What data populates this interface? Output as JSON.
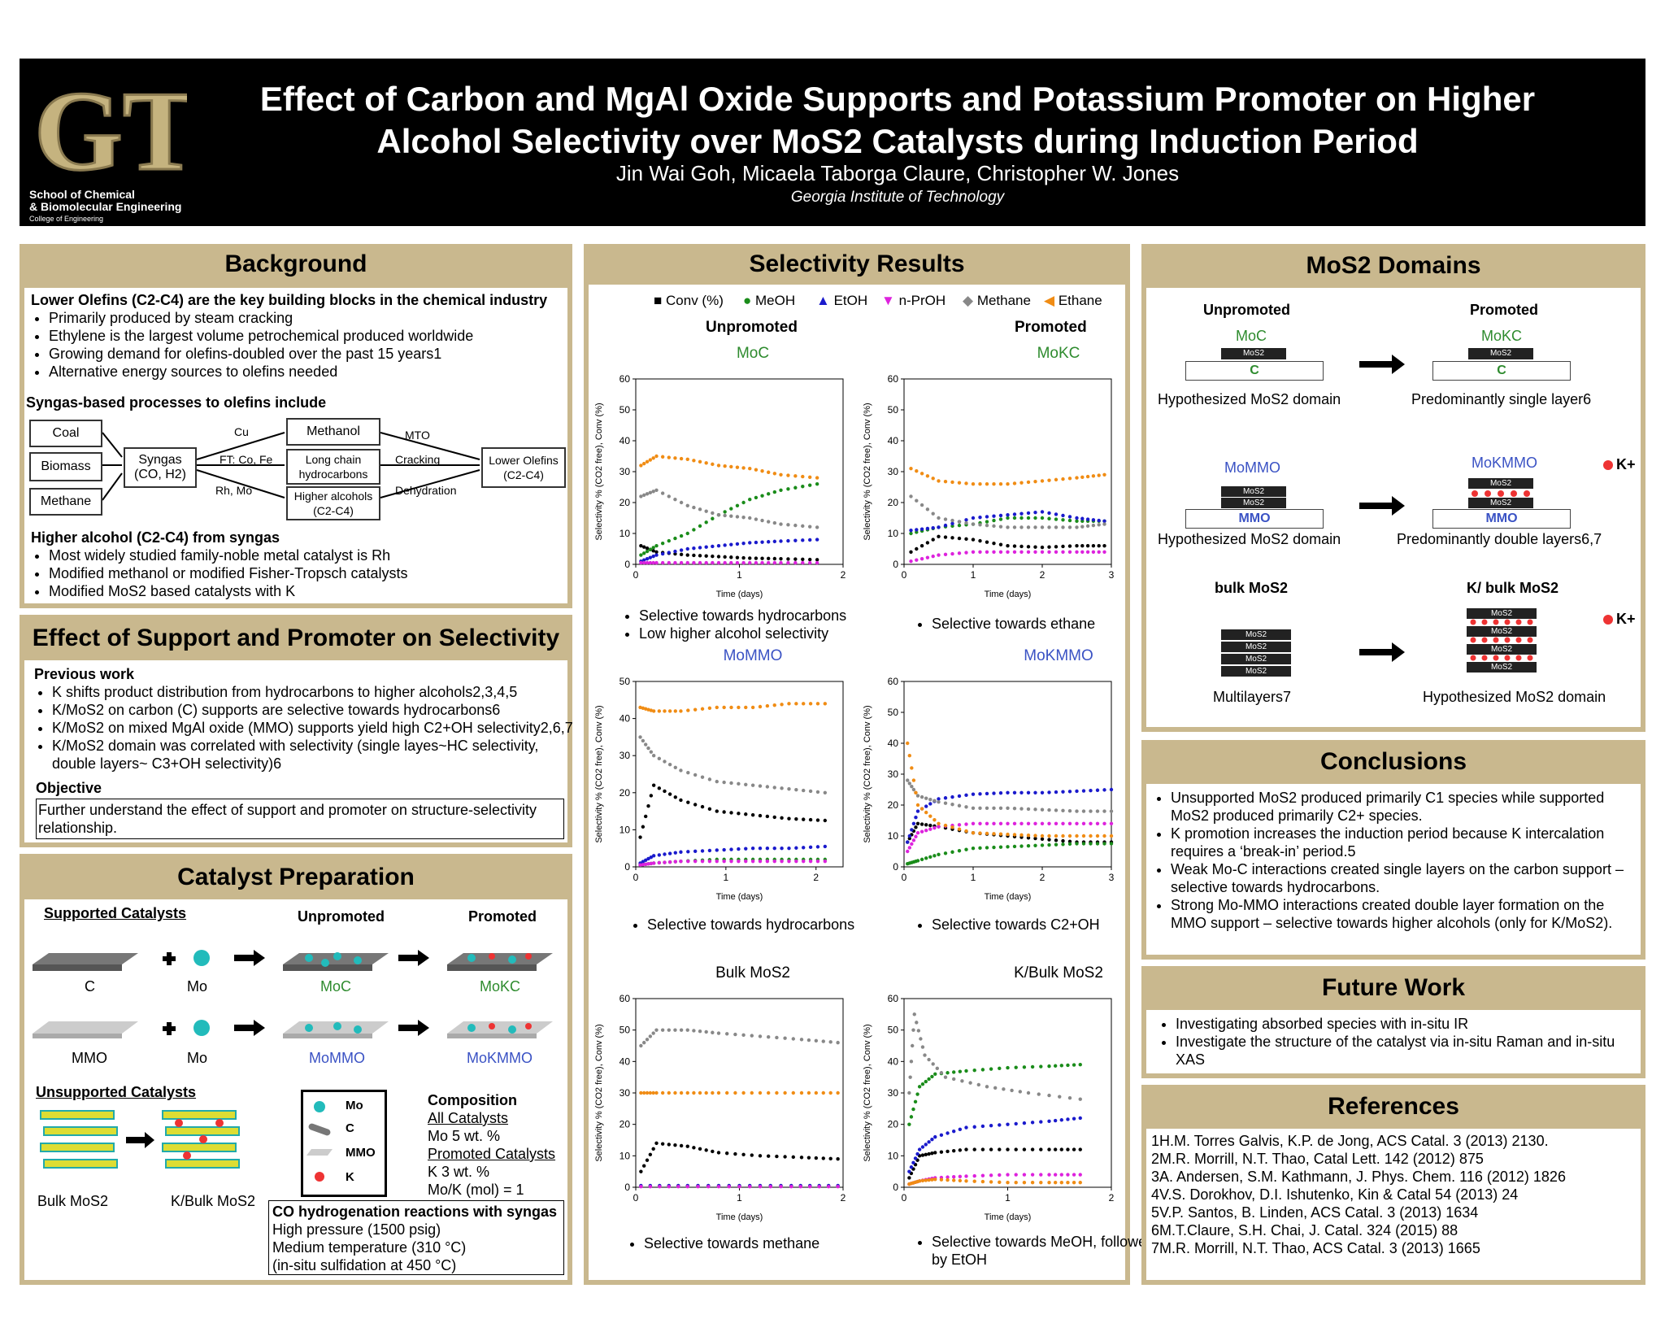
{
  "header": {
    "logo": "GT",
    "school_line1": "School of Chemical",
    "school_line2": "& Biomolecular Engineering",
    "school_line3": "College of Engineering",
    "title_line1": "Effect of Carbon and MgAl Oxide Supports and Potassium Promoter on Higher",
    "title_line2": "Alcohol Selectivity over MoS2 Catalysts during Induction Period",
    "authors": "Jin Wai Goh, Micaela Taborga Claure, Christopher W. Jones",
    "affiliation": "Georgia Institute of Technology"
  },
  "background": {
    "heading": "Background",
    "olefins_heading": "Lower Olefins (C2-C4) are the key building blocks in the chemical industry",
    "olefins_bullets": [
      "Primarily produced by steam cracking",
      "Ethylene is the largest volume petrochemical produced worldwide",
      "Growing demand for olefins-doubled over the past 15 years1",
      "Alternative energy sources to olefins needed"
    ],
    "syngas_heading": "Syngas-based processes to olefins include",
    "diagram": {
      "coal": "Coal",
      "biomass": "Biomass",
      "methane": "Methane",
      "syngas": "Syngas (CO, H2)",
      "cu": "Cu",
      "ft": "FT: Co, Fe",
      "rh": "Rh, Mo",
      "methanol": "Methanol",
      "longchain": "Long chain hydrocarbons",
      "higheralc": "Higher alcohols (C2-C4)",
      "mto": "MTO",
      "cracking": "Cracking",
      "dehydration": "Dehydration",
      "olefins": "Lower Olefins (C2-C4)"
    },
    "higher_heading": "Higher alcohol (C2-C4) from syngas",
    "higher_bullets": [
      "Most widely studied family-noble metal catalyst is Rh",
      "Modified methanol or modified Fisher-Tropsch catalysts",
      "Modified MoS2 based catalysts with K"
    ]
  },
  "effect": {
    "heading": "Effect of Support and Promoter on Selectivity",
    "prev_heading": "Previous work",
    "prev_bullets": [
      "K shifts product distribution from hydrocarbons to higher alcohols2,3,4,5",
      "K/MoS2 on carbon (C) supports are selective towards hydrocarbons6",
      "K/MoS2 on mixed MgAl oxide (MMO) supports yield high C2+OH selectivity2,6,7",
      "K/MoS2 domain was correlated with selectivity (single layes~HC selectivity,",
      "double layers~ C3+OH selectivity)6"
    ],
    "obj_heading": "Objective",
    "objective": "Further understand the effect of support and promoter on structure-selectivity relationship."
  },
  "prep": {
    "heading": "Catalyst Preparation",
    "supported": "Supported Catalysts",
    "unpromoted": "Unpromoted",
    "promoted": "Promoted",
    "c": "C",
    "mo": "Mo",
    "moc": "MoC",
    "mokc": "MoKC",
    "mmo": "MMO",
    "mo2": "Mo",
    "momo": "MoMMO",
    "mokmmo": "MoKMMO",
    "unsupported": "Unsupported Catalysts",
    "bulk": "Bulk MoS2",
    "kbulk": "K/Bulk MoS2",
    "legend": {
      "mo": "Mo",
      "c": "C",
      "mmo": "MMO",
      "k": "K"
    },
    "comp_heading": "Composition",
    "comp_lines": [
      "All Catalysts",
      "Mo 5 wt. %",
      "Promoted Catalysts",
      "K  3 wt. %",
      "Mo/K (mol) = 1"
    ],
    "reaction_heading": "CO hydrogenation reactions with syngas",
    "reaction_lines": [
      "High pressure (1500 psig)",
      "Medium temperature (310 °C)",
      "(in-situ sulfidation at 450 °C)"
    ]
  },
  "selectivity": {
    "heading": "Selectivity Results",
    "legend": [
      "Conv (%)",
      "MeOH",
      "EtOH",
      "n-PrOH",
      "Methane",
      "Ethane"
    ],
    "col_unpromoted": "Unpromoted",
    "col_promoted": "Promoted",
    "ylabel": "Selectivity % (CO2 free), Conv (%)",
    "xlabel": "Time (days)",
    "c1_title": "MoC",
    "c2_title": "MoKC",
    "c3_title": "MoMMO",
    "c4_title": "MoKMMO",
    "c5_title": "Bulk MoS2",
    "c6_title": "K/Bulk MoS2",
    "c1_notes": [
      "Selective towards hydrocarbons",
      "Low higher alcohol selectivity"
    ],
    "c2_notes": [
      "Selective towards ethane"
    ],
    "c3_notes": [
      "Selective towards hydrocarbons"
    ],
    "c4_notes": [
      "Selective towards C2+OH"
    ],
    "c5_notes": [
      "Selective towards methane"
    ],
    "c6_notes": [
      "Selective towards MeOH, followed",
      "by EtOH"
    ]
  },
  "domains": {
    "heading": "MoS2 Domains",
    "unpromoted": "Unpromoted",
    "promoted": "Promoted",
    "moc": "MoC",
    "mokc": "MoKC",
    "mos2": "MoS2",
    "c": "C",
    "hyp1": "Hypothesized MoS2 domain",
    "pred1": "Predominantly single layer6",
    "momo": "MoMMO",
    "mokmmo": "MoKMMO",
    "mmo": "MMO",
    "k": "K+",
    "hyp2": "Hypothesized MoS2 domain",
    "pred2": "Predominantly double layers6,7",
    "bulk": "bulk MoS2",
    "kbulk": "K/ bulk MoS2",
    "multi": "Multilayers7",
    "hyp3": "Hypothesized MoS2 domain"
  },
  "conclusions": {
    "heading": "Conclusions",
    "bullets": [
      "Unsupported MoS2 produced primarily C1 species while supported MoS2 produced primarily C2+ species.",
      "K promotion increases the induction period because K intercalation requires a ‘break-in’ period.5",
      "Weak Mo-C interactions created single layers on the carbon support – selective towards hydrocarbons.",
      "Strong Mo-MMO interactions created double layer formation on the MMO support – selective towards higher alcohols (only for K/MoS2)."
    ]
  },
  "future": {
    "heading": "Future Work",
    "bullets": [
      "Investigating absorbed species with in-situ IR",
      "Investigate the structure of the catalyst via in-situ Raman and in-situ XAS"
    ]
  },
  "references": {
    "heading": "References",
    "items": [
      "1H.M. Torres Galvis, K.P. de Jong, ACS Catal. 3 (2013) 2130.",
      "2M.R. Morrill, N.T. Thao, Catal Lett. 142 (2012) 875",
      "3A. Andersen, S.M. Kathmann, J. Phys. Chem. 116 (2012) 1826",
      "4V.S. Dorokhov, D.I. Ishutenko, Kin & Catal 54 (2013) 24",
      "5V.P. Santos, B. Linden, ACS Catal. 3 (2013) 1634",
      "6M.T.Claure, S.H. Chai, J. Catal. 324 (2015) 88",
      "7M.R. Morrill, N.T. Thao, ACS Catal. 3 (2013) 1665"
    ]
  },
  "colors": {
    "conv": "#000000",
    "meoh": "#1a8c1a",
    "etoh": "#1a1acc",
    "nproh": "#dd22dd",
    "methane": "#888888",
    "ethane": "#f08c14",
    "tan": "#c9b88e"
  },
  "chart_data": [
    {
      "type": "scatter",
      "title": "MoC",
      "xlabel": "Time (days)",
      "ylabel": "Selectivity % (CO2 free), Conv (%)",
      "xlim": [
        0,
        2
      ],
      "ylim": [
        0,
        60
      ],
      "series": [
        {
          "name": "Conv (%)",
          "x": [
            0.05,
            0.2,
            0.5,
            0.8,
            1.1,
            1.4,
            1.75
          ],
          "y": [
            6,
            4,
            3,
            2.5,
            2,
            1.8,
            1.5
          ]
        },
        {
          "name": "MeOH",
          "x": [
            0.05,
            0.2,
            0.5,
            0.8,
            1.1,
            1.4,
            1.75
          ],
          "y": [
            3,
            6,
            10,
            16,
            21,
            24,
            26
          ]
        },
        {
          "name": "EtOH",
          "x": [
            0.05,
            0.2,
            0.5,
            0.8,
            1.1,
            1.4,
            1.75
          ],
          "y": [
            1,
            3,
            5,
            6,
            7,
            7.5,
            8
          ]
        },
        {
          "name": "n-PrOH",
          "x": [
            0.05,
            0.2,
            0.5,
            0.8,
            1.1,
            1.4,
            1.75
          ],
          "y": [
            0.5,
            0.5,
            0.5,
            0.5,
            0.5,
            0.5,
            0.5
          ]
        },
        {
          "name": "Methane",
          "x": [
            0.05,
            0.2,
            0.5,
            0.8,
            1.1,
            1.4,
            1.75
          ],
          "y": [
            22,
            24,
            19,
            16,
            15,
            13,
            12
          ]
        },
        {
          "name": "Ethane",
          "x": [
            0.05,
            0.2,
            0.5,
            0.8,
            1.1,
            1.4,
            1.75
          ],
          "y": [
            32,
            35,
            34,
            32,
            31,
            29,
            28
          ]
        }
      ]
    },
    {
      "type": "scatter",
      "title": "MoKC",
      "xlabel": "Time (days)",
      "ylabel": "Selectivity % (CO2 free), Conv (%)",
      "xlim": [
        0,
        3
      ],
      "ylim": [
        0,
        60
      ],
      "series": [
        {
          "name": "Conv (%)",
          "x": [
            0.1,
            0.5,
            1,
            1.5,
            2,
            2.5,
            2.9
          ],
          "y": [
            4,
            9,
            8,
            6,
            5.5,
            6,
            6
          ]
        },
        {
          "name": "MeOH",
          "x": [
            0.1,
            0.5,
            1,
            1.5,
            2,
            2.5,
            2.9
          ],
          "y": [
            10,
            12,
            13,
            15,
            15,
            14,
            14
          ]
        },
        {
          "name": "EtOH",
          "x": [
            0.1,
            0.5,
            1,
            1.5,
            2,
            2.5,
            2.9
          ],
          "y": [
            11,
            12,
            15,
            16,
            17,
            15,
            14
          ]
        },
        {
          "name": "n-PrOH",
          "x": [
            0.1,
            0.5,
            1,
            1.5,
            2,
            2.5,
            2.9
          ],
          "y": [
            1,
            3,
            4,
            4,
            4,
            4,
            4
          ]
        },
        {
          "name": "Methane",
          "x": [
            0.1,
            0.5,
            1,
            1.5,
            2,
            2.5,
            2.9
          ],
          "y": [
            22,
            15,
            13,
            12,
            12,
            12,
            13
          ]
        },
        {
          "name": "Ethane",
          "x": [
            0.1,
            0.5,
            1,
            1.5,
            2,
            2.5,
            2.9
          ],
          "y": [
            31,
            27,
            26,
            26,
            27,
            28,
            29
          ]
        }
      ]
    },
    {
      "type": "scatter",
      "title": "MoMMO",
      "xlabel": "Time (days)",
      "ylabel": "Selectivity % (CO2 free), Conv (%)",
      "xlim": [
        0,
        2.3
      ],
      "ylim": [
        0,
        50
      ],
      "series": [
        {
          "name": "Conv (%)",
          "x": [
            0.05,
            0.2,
            0.5,
            0.9,
            1.3,
            1.7,
            2.1
          ],
          "y": [
            8,
            22,
            18,
            15,
            14,
            13,
            12.5
          ]
        },
        {
          "name": "MeOH",
          "x": [
            0.05,
            0.2,
            0.5,
            0.9,
            1.3,
            1.7,
            2.1
          ],
          "y": [
            0.5,
            1,
            1.5,
            2,
            2,
            2,
            2
          ]
        },
        {
          "name": "EtOH",
          "x": [
            0.05,
            0.2,
            0.5,
            0.9,
            1.3,
            1.7,
            2.1
          ],
          "y": [
            1,
            3,
            4,
            4.5,
            5,
            5,
            5.5
          ]
        },
        {
          "name": "n-PrOH",
          "x": [
            0.05,
            0.2,
            0.5,
            0.9,
            1.3,
            1.7,
            2.1
          ],
          "y": [
            0.5,
            1,
            1.5,
            1.5,
            1.5,
            1.5,
            1.5
          ]
        },
        {
          "name": "Methane",
          "x": [
            0.05,
            0.2,
            0.5,
            0.9,
            1.3,
            1.7,
            2.1
          ],
          "y": [
            35,
            30,
            26,
            23,
            22,
            21,
            20
          ]
        },
        {
          "name": "Ethane",
          "x": [
            0.05,
            0.2,
            0.5,
            0.9,
            1.3,
            1.7,
            2.1
          ],
          "y": [
            43,
            42,
            42,
            43,
            43,
            44,
            44
          ]
        }
      ]
    },
    {
      "type": "scatter",
      "title": "MoKMMO",
      "xlabel": "Time (days)",
      "ylabel": "Selectivity % (CO2 free), Conv (%)",
      "xlim": [
        0,
        3
      ],
      "ylim": [
        0,
        60
      ],
      "series": [
        {
          "name": "Conv (%)",
          "x": [
            0.05,
            0.2,
            0.5,
            1,
            1.5,
            2,
            2.5,
            3
          ],
          "y": [
            8,
            14,
            13,
            11,
            10,
            9,
            8,
            8
          ]
        },
        {
          "name": "MeOH",
          "x": [
            0.05,
            0.2,
            0.5,
            1,
            1.5,
            2,
            2.5,
            3
          ],
          "y": [
            1,
            2,
            4,
            6,
            6.5,
            7,
            7.5,
            7.5
          ]
        },
        {
          "name": "EtOH",
          "x": [
            0.05,
            0.2,
            0.5,
            1,
            1.5,
            2,
            2.5,
            3
          ],
          "y": [
            8,
            18,
            22,
            23.5,
            24,
            24,
            24.5,
            25
          ]
        },
        {
          "name": "n-PrOH",
          "x": [
            0.05,
            0.2,
            0.5,
            1,
            1.5,
            2,
            2.5,
            3
          ],
          "y": [
            5,
            11,
            13,
            14,
            14,
            14,
            14,
            14
          ]
        },
        {
          "name": "Methane",
          "x": [
            0.05,
            0.2,
            0.5,
            1,
            1.5,
            2,
            2.5,
            3
          ],
          "y": [
            28,
            23,
            21,
            19,
            19,
            18.5,
            18,
            18
          ]
        },
        {
          "name": "Ethane",
          "x": [
            0.05,
            0.2,
            0.5,
            1,
            1.5,
            2,
            2.5,
            3
          ],
          "y": [
            40,
            20,
            14,
            11,
            10.5,
            10,
            10,
            10
          ]
        }
      ]
    },
    {
      "type": "scatter",
      "title": "Bulk MoS2",
      "xlabel": "Time (days)",
      "ylabel": "Selectivity % (CO2 free), Conv (%)",
      "xlim": [
        0,
        2
      ],
      "ylim": [
        0,
        60
      ],
      "series": [
        {
          "name": "Conv (%)",
          "x": [
            0.05,
            0.2,
            0.5,
            0.8,
            1.2,
            1.6,
            1.95
          ],
          "y": [
            5,
            14,
            13,
            11,
            10,
            9.5,
            9
          ]
        },
        {
          "name": "MeOH",
          "x": [
            0.05,
            0.5,
            1,
            1.5,
            1.95
          ],
          "y": [
            0.5,
            0.5,
            0.5,
            0.5,
            0.5
          ]
        },
        {
          "name": "EtOH",
          "x": [
            0.05,
            0.5,
            1,
            1.5,
            1.95
          ],
          "y": [
            0.5,
            0.5,
            0.5,
            0.5,
            0.5
          ]
        },
        {
          "name": "n-PrOH",
          "x": [
            0.05,
            0.5,
            1,
            1.5,
            1.95
          ],
          "y": [
            0.2,
            0.2,
            0.2,
            0.2,
            0.2
          ]
        },
        {
          "name": "Methane",
          "x": [
            0.05,
            0.2,
            0.5,
            0.8,
            1.2,
            1.6,
            1.95
          ],
          "y": [
            45,
            50,
            50,
            49,
            48,
            47,
            46
          ]
        },
        {
          "name": "Ethane",
          "x": [
            0.05,
            0.2,
            0.5,
            0.8,
            1.2,
            1.6,
            1.95
          ],
          "y": [
            30,
            30,
            30,
            30,
            30,
            30,
            30
          ]
        }
      ]
    },
    {
      "type": "scatter",
      "title": "K/Bulk MoS2",
      "xlabel": "Time (days)",
      "ylabel": "Selectivity % (CO2 free), Conv (%)",
      "xlim": [
        0,
        2
      ],
      "ylim": [
        0,
        60
      ],
      "series": [
        {
          "name": "Conv (%)",
          "x": [
            0.05,
            0.15,
            0.3,
            0.6,
            1,
            1.4,
            1.7
          ],
          "y": [
            3,
            10,
            11,
            12,
            12,
            12,
            12
          ]
        },
        {
          "name": "MeOH",
          "x": [
            0.05,
            0.15,
            0.3,
            0.6,
            1,
            1.4,
            1.7
          ],
          "y": [
            20,
            32,
            36,
            37,
            38,
            38.5,
            39
          ]
        },
        {
          "name": "EtOH",
          "x": [
            0.05,
            0.15,
            0.3,
            0.6,
            1,
            1.4,
            1.7
          ],
          "y": [
            5,
            12,
            16,
            19,
            20,
            21,
            22
          ]
        },
        {
          "name": "n-PrOH",
          "x": [
            0.05,
            0.15,
            0.3,
            0.6,
            1,
            1.4,
            1.7
          ],
          "y": [
            1,
            2,
            3,
            3.5,
            4,
            4,
            4
          ]
        },
        {
          "name": "Methane",
          "x": [
            0.05,
            0.1,
            0.2,
            0.4,
            0.8,
            1.2,
            1.7
          ],
          "y": [
            30,
            55,
            42,
            35,
            32,
            30,
            28
          ]
        },
        {
          "name": "Ethane",
          "x": [
            0.05,
            0.15,
            0.3,
            0.6,
            1,
            1.4,
            1.7
          ],
          "y": [
            1,
            2,
            2.5,
            2,
            1.5,
            1.5,
            1.5
          ]
        }
      ]
    }
  ]
}
